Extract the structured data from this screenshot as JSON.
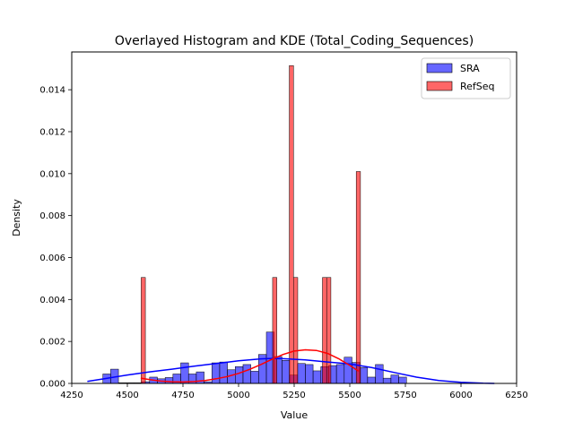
{
  "chart_data": {
    "type": "bar",
    "title": "Overlayed Histogram and KDE (Total_Coding_Sequences)",
    "xlabel": "Value",
    "ylabel": "Density",
    "xlim": [
      4250,
      6250
    ],
    "ylim": [
      0,
      0.0158
    ],
    "x_ticks": [
      4250,
      4500,
      4750,
      5000,
      5250,
      5500,
      5750,
      6000,
      6250
    ],
    "y_ticks": [
      0.0,
      0.002,
      0.004,
      0.006,
      0.008,
      0.01,
      0.012,
      0.014
    ],
    "y_tick_labels": [
      "0.000",
      "0.002",
      "0.004",
      "0.006",
      "0.008",
      "0.010",
      "0.012",
      "0.014"
    ],
    "legend_position": "top-right",
    "series": [
      {
        "name": "SRA",
        "kind": "histogram",
        "color": "#0000ff",
        "bins": [
          [
            4390,
            4425,
            0.00045
          ],
          [
            4425,
            4460,
            0.00068
          ],
          [
            4460,
            4495,
            3e-05
          ],
          [
            4495,
            4530,
            3e-05
          ],
          [
            4530,
            4565,
            3e-05
          ],
          [
            4565,
            4600,
            8e-05
          ],
          [
            4600,
            4635,
            0.0003
          ],
          [
            4635,
            4670,
            0.00022
          ],
          [
            4670,
            4705,
            0.00028
          ],
          [
            4705,
            4740,
            0.00045
          ],
          [
            4740,
            4775,
            0.00098
          ],
          [
            4775,
            4810,
            0.00045
          ],
          [
            4810,
            4845,
            0.00055
          ],
          [
            4845,
            4880,
            8e-05
          ],
          [
            4880,
            4915,
            0.00098
          ],
          [
            4915,
            4950,
            0.00102
          ],
          [
            4950,
            4985,
            0.00065
          ],
          [
            4985,
            5020,
            0.0008
          ],
          [
            5020,
            5055,
            0.0009
          ],
          [
            5055,
            5090,
            0.00058
          ],
          [
            5090,
            5125,
            0.00138
          ],
          [
            5125,
            5160,
            0.00245
          ],
          [
            5160,
            5195,
            0.00128
          ],
          [
            5195,
            5230,
            0.0011
          ],
          [
            5230,
            5265,
            0.0004
          ],
          [
            5265,
            5300,
            0.00095
          ],
          [
            5300,
            5335,
            0.0009
          ],
          [
            5335,
            5370,
            0.0006
          ],
          [
            5370,
            5405,
            0.0008
          ],
          [
            5405,
            5440,
            0.00085
          ],
          [
            5440,
            5475,
            0.0009
          ],
          [
            5475,
            5510,
            0.00125
          ],
          [
            5510,
            5545,
            0.001
          ],
          [
            5545,
            5580,
            0.00075
          ],
          [
            5580,
            5615,
            0.0003
          ],
          [
            5615,
            5650,
            0.0009
          ],
          [
            5650,
            5685,
            0.00025
          ],
          [
            5685,
            5720,
            0.0004
          ],
          [
            5720,
            5755,
            0.0003
          ]
        ],
        "kde": {
          "x": [
            4320,
            4400,
            4500,
            4600,
            4700,
            4800,
            4900,
            5000,
            5100,
            5150,
            5200,
            5300,
            5400,
            5500,
            5600,
            5700,
            5800,
            5900,
            6000,
            6100,
            6150
          ],
          "y": [
            0.0001,
            0.00023,
            0.0004,
            0.00055,
            0.00068,
            0.00082,
            0.00095,
            0.00108,
            0.00117,
            0.00119,
            0.00118,
            0.00112,
            0.00102,
            0.00093,
            0.00075,
            0.00052,
            0.0003,
            0.00014,
            5e-05,
            1e-05,
            0.0
          ]
        }
      },
      {
        "name": "RefSeq",
        "kind": "histogram",
        "color": "#ff0000",
        "bins": [
          [
            4562,
            4581,
            0.00505
          ],
          [
            5153,
            5172,
            0.00505
          ],
          [
            5228,
            5247,
            0.01515
          ],
          [
            5247,
            5266,
            0.00505
          ],
          [
            5377,
            5396,
            0.00505
          ],
          [
            5396,
            5415,
            0.00505
          ],
          [
            5529,
            5548,
            0.0101
          ]
        ],
        "kde": {
          "x": [
            4560,
            4600,
            4650,
            4700,
            4750,
            4800,
            4850,
            4900,
            4950,
            5000,
            5050,
            5100,
            5150,
            5200,
            5250,
            5300,
            5350,
            5400,
            5450,
            5500,
            5540
          ],
          "y": [
            0.00025,
            0.00018,
            0.00011,
            8e-05,
            7e-05,
            9e-05,
            0.00014,
            0.00022,
            0.00033,
            0.00048,
            0.00067,
            0.0009,
            0.00115,
            0.00138,
            0.00154,
            0.0016,
            0.00157,
            0.00143,
            0.00118,
            0.00086,
            0.00058
          ]
        }
      }
    ]
  }
}
